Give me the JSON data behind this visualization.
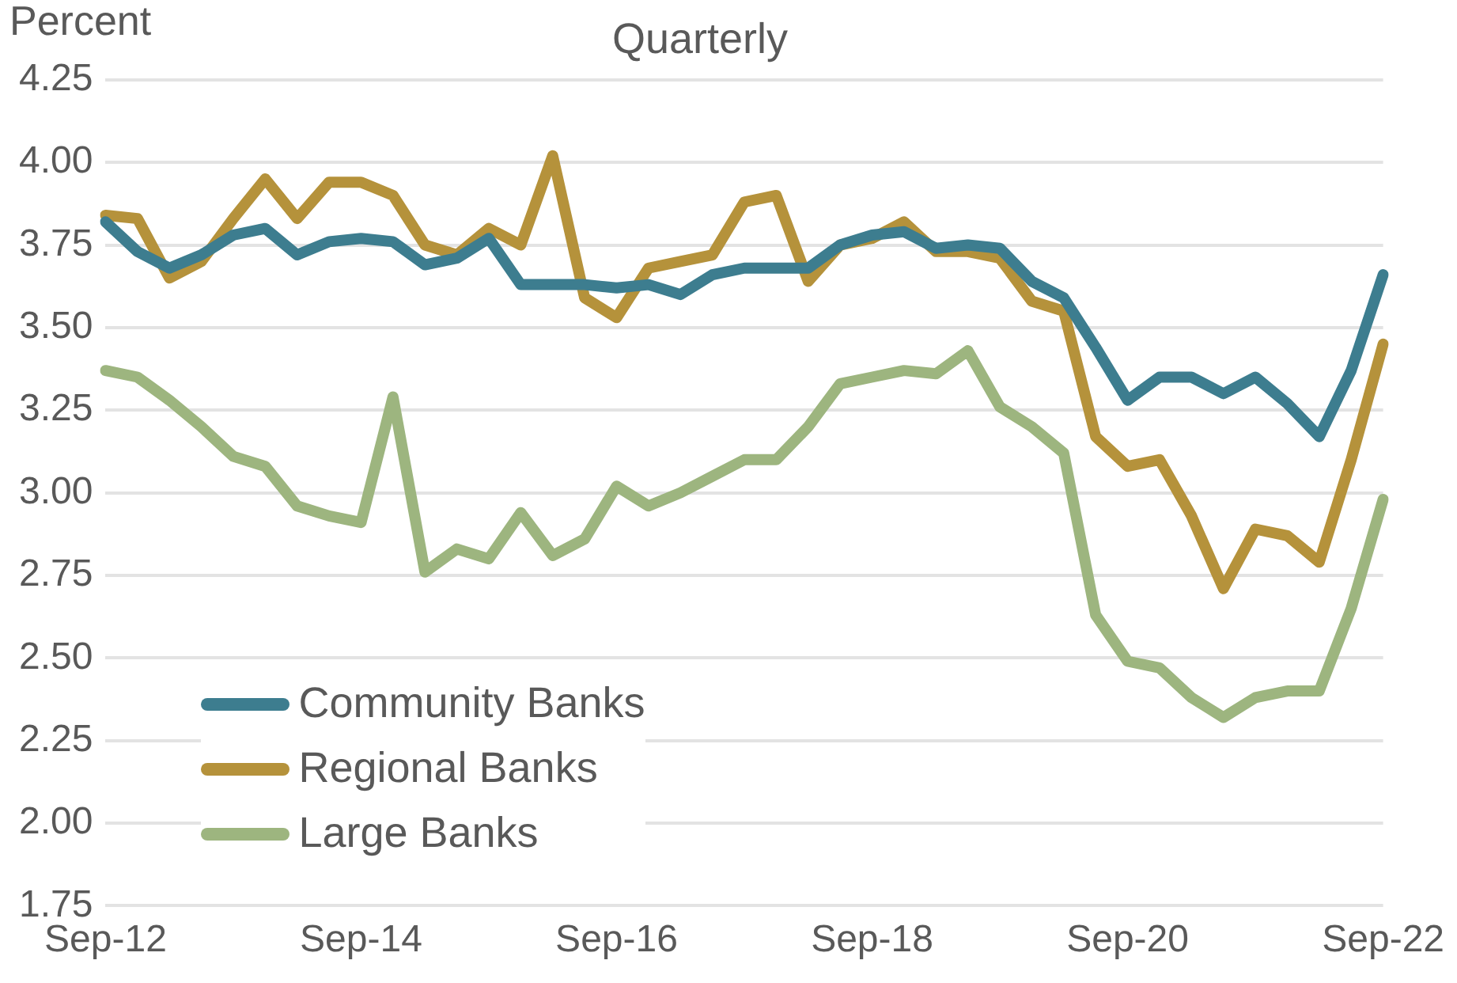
{
  "chart_data": {
    "type": "line",
    "title": "Quarterly",
    "ylabel": "Percent",
    "categories": [
      "Sep-12",
      null,
      null,
      null,
      null,
      null,
      null,
      null,
      "Sep-14",
      null,
      null,
      null,
      null,
      null,
      null,
      null,
      "Sep-16",
      null,
      null,
      null,
      null,
      null,
      null,
      null,
      "Sep-18",
      null,
      null,
      null,
      null,
      null,
      null,
      null,
      "Sep-20",
      null,
      null,
      null,
      null,
      null,
      null,
      null,
      "Sep-22"
    ],
    "series": [
      {
        "name": "Community Banks",
        "color": "#3d7d8f",
        "values": [
          3.82,
          3.73,
          3.68,
          3.72,
          3.78,
          3.8,
          3.72,
          3.76,
          3.77,
          3.76,
          3.69,
          3.71,
          3.77,
          3.63,
          3.63,
          3.63,
          3.62,
          3.63,
          3.6,
          3.66,
          3.68,
          3.68,
          3.68,
          3.75,
          3.78,
          3.79,
          3.74,
          3.75,
          3.74,
          3.64,
          3.59,
          3.44,
          3.28,
          3.35,
          3.35,
          3.3,
          3.35,
          3.27,
          3.17,
          3.37,
          3.66
        ]
      },
      {
        "name": "Regional Banks",
        "color": "#b5923b",
        "values": [
          3.84,
          3.83,
          3.65,
          3.7,
          3.83,
          3.95,
          3.83,
          3.94,
          3.94,
          3.9,
          3.75,
          3.72,
          3.8,
          3.75,
          4.02,
          3.59,
          3.53,
          3.68,
          3.7,
          3.72,
          3.88,
          3.9,
          3.64,
          3.75,
          3.77,
          3.82,
          3.73,
          3.73,
          3.71,
          3.58,
          3.55,
          3.17,
          3.08,
          3.1,
          2.93,
          2.71,
          2.89,
          2.87,
          2.79,
          3.1,
          3.45
        ]
      },
      {
        "name": "Large Banks",
        "color": "#9db57f",
        "values": [
          3.37,
          3.35,
          3.28,
          3.2,
          3.11,
          3.08,
          2.96,
          2.93,
          2.91,
          3.29,
          2.76,
          2.83,
          2.8,
          2.94,
          2.81,
          2.86,
          3.02,
          2.96,
          3.0,
          3.05,
          3.1,
          3.1,
          3.2,
          3.33,
          3.35,
          3.37,
          3.36,
          3.43,
          3.26,
          3.2,
          3.12,
          2.63,
          2.49,
          2.47,
          2.38,
          2.32,
          2.38,
          2.4,
          2.4,
          2.65,
          2.98
        ]
      }
    ],
    "ylim": [
      1.75,
      4.25
    ],
    "yticks": [
      1.75,
      {
        "value": 2,
        "label": "2.00"
      },
      2.25,
      {
        "value": 2.5,
        "label": "2.50"
      },
      2.75,
      {
        "value": 3,
        "label": "3.00"
      },
      3.25,
      {
        "value": 3.5,
        "label": "3.50"
      },
      3.75,
      {
        "value": 4,
        "label": "4.00"
      },
      4.25
    ],
    "grid": "y",
    "legend": "bottom left",
    "marker": "none",
    "line_style": "solid"
  }
}
